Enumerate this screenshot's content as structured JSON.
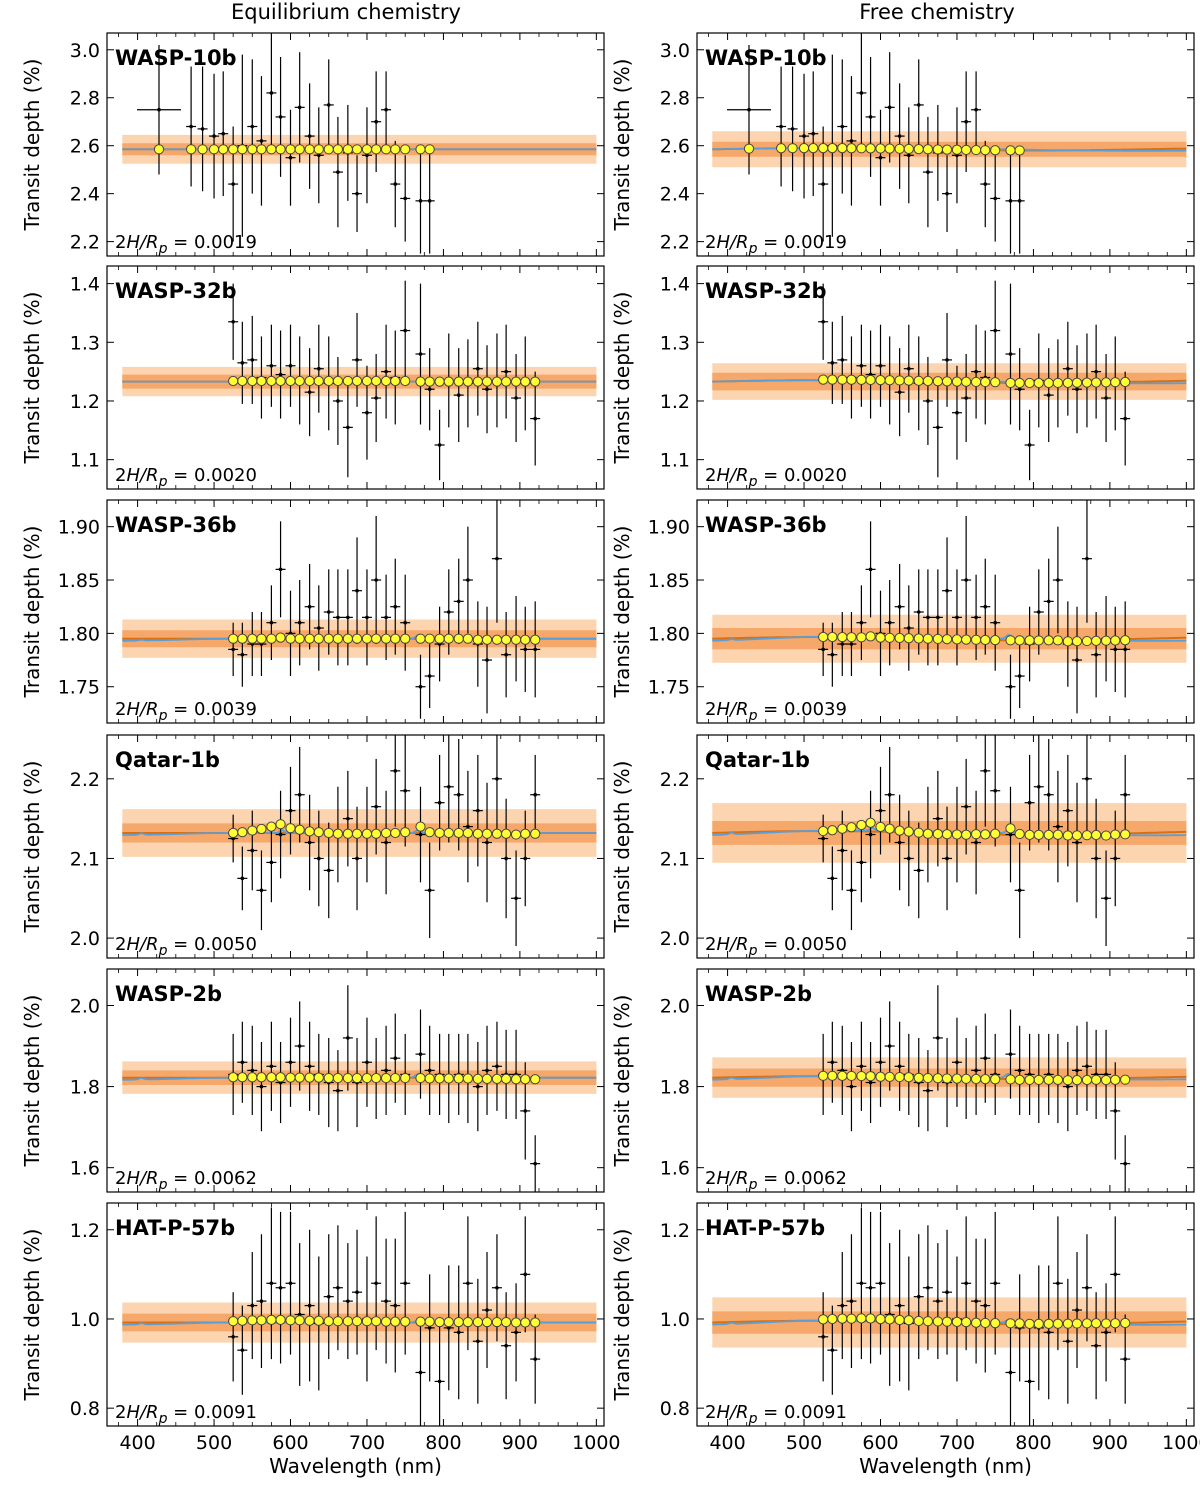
{
  "figure": {
    "column_titles": [
      "Equilibrium chemistry",
      "Free chemistry"
    ],
    "xlabel": "Wavelength (nm)",
    "ylabel": "Transit depth (%)",
    "xlim": [
      360,
      1010
    ],
    "xticks": [
      400,
      500,
      600,
      700,
      800,
      900,
      1000
    ],
    "colors": {
      "data": "#000000",
      "model_binned_fill": "#ffff33",
      "model_binned_edge": "#444444",
      "model_blue": "#5b9fd8",
      "model_orange": "#d96f10",
      "band_1sigma": "#f6a86a",
      "band_2sigma": "#fcd5b0"
    }
  },
  "chart_data": [
    {
      "type": "line",
      "planet": "WASP-10b",
      "scale_label": "2H/R_p = 0.0019",
      "ylim": [
        2.14,
        3.07
      ],
      "yticks": [
        "2.2",
        "2.4",
        "2.6",
        "2.8",
        "3.0"
      ],
      "baseline": 2.585,
      "band1": 0.025,
      "band2": 0.06,
      "x": [
        428,
        470,
        485,
        500,
        512,
        525,
        537,
        550,
        562,
        575,
        587,
        600,
        612,
        625,
        637,
        650,
        662,
        675,
        687,
        700,
        712,
        725,
        737,
        750,
        770,
        782
      ],
      "values": [
        2.75,
        2.68,
        2.67,
        2.64,
        2.65,
        2.44,
        2.6,
        2.68,
        2.62,
        2.82,
        2.72,
        2.55,
        2.76,
        2.64,
        2.56,
        2.77,
        2.49,
        2.57,
        2.4,
        2.56,
        2.7,
        2.75,
        2.44,
        2.38,
        2.37,
        2.37
      ],
      "errors": [
        0.27,
        0.25,
        0.26,
        0.26,
        0.26,
        0.24,
        0.38,
        0.28,
        0.27,
        0.25,
        0.25,
        0.2,
        0.23,
        0.22,
        0.2,
        0.19,
        0.23,
        0.2,
        0.16,
        0.2,
        0.21,
        0.16,
        0.18,
        0.18,
        0.22,
        0.22
      ],
      "model_binned": [
        2.585,
        2.585,
        2.585,
        2.585,
        2.585,
        2.585,
        2.585,
        2.585,
        2.585,
        2.585,
        2.585,
        2.585,
        2.585,
        2.585,
        2.585,
        2.585,
        2.585,
        2.585,
        2.585,
        2.585,
        2.585,
        2.585,
        2.585,
        2.585,
        2.585,
        2.585
      ]
    },
    {
      "type": "line",
      "planet": "WASP-32b",
      "scale_label": "2H/R_p = 0.0020",
      "ylim": [
        1.05,
        1.43
      ],
      "yticks": [
        "1.1",
        "1.2",
        "1.3",
        "1.4"
      ],
      "baseline": 1.233,
      "band1": 0.012,
      "band2": 0.025,
      "x": [
        525,
        537,
        550,
        562,
        575,
        587,
        600,
        612,
        625,
        637,
        650,
        662,
        675,
        687,
        700,
        712,
        725,
        737,
        750,
        770,
        782,
        795,
        807,
        820,
        832,
        845,
        857,
        870,
        882,
        895,
        907,
        920
      ],
      "values": [
        1.335,
        1.265,
        1.27,
        1.24,
        1.26,
        1.245,
        1.26,
        1.235,
        1.215,
        1.255,
        1.23,
        1.2,
        1.155,
        1.27,
        1.18,
        1.205,
        1.25,
        1.24,
        1.32,
        1.28,
        1.22,
        1.125,
        1.235,
        1.21,
        1.23,
        1.255,
        1.22,
        1.235,
        1.25,
        1.205,
        1.23,
        1.17
      ],
      "errors": [
        0.065,
        0.07,
        0.075,
        0.07,
        0.07,
        0.075,
        0.07,
        0.075,
        0.075,
        0.075,
        0.08,
        0.075,
        0.085,
        0.08,
        0.08,
        0.075,
        0.08,
        0.08,
        0.085,
        0.12,
        0.07,
        0.06,
        0.08,
        0.08,
        0.075,
        0.08,
        0.075,
        0.08,
        0.08,
        0.075,
        0.08,
        0.08
      ],
      "model_binned": [
        1.234,
        1.234,
        1.234,
        1.234,
        1.234,
        1.234,
        1.234,
        1.234,
        1.234,
        1.234,
        1.234,
        1.234,
        1.234,
        1.234,
        1.234,
        1.234,
        1.234,
        1.234,
        1.234,
        1.233,
        1.233,
        1.233,
        1.233,
        1.233,
        1.233,
        1.233,
        1.233,
        1.233,
        1.233,
        1.233,
        1.233,
        1.233
      ]
    },
    {
      "type": "line",
      "planet": "WASP-36b",
      "scale_label": "2H/R_p = 0.0039",
      "ylim": [
        1.716,
        1.925
      ],
      "yticks": [
        "1.75",
        "1.80",
        "1.85",
        "1.90"
      ],
      "baseline": 1.795,
      "band1": 0.008,
      "band2": 0.018,
      "x": [
        525,
        537,
        550,
        562,
        575,
        587,
        600,
        612,
        625,
        637,
        650,
        662,
        675,
        687,
        700,
        712,
        725,
        737,
        750,
        770,
        782,
        795,
        807,
        820,
        832,
        845,
        857,
        870,
        882,
        895,
        907,
        920
      ],
      "values": [
        1.785,
        1.78,
        1.79,
        1.79,
        1.81,
        1.86,
        1.8,
        1.81,
        1.825,
        1.805,
        1.82,
        1.815,
        1.815,
        1.84,
        1.815,
        1.85,
        1.815,
        1.825,
        1.81,
        1.75,
        1.76,
        1.79,
        1.82,
        1.83,
        1.85,
        1.79,
        1.775,
        1.87,
        1.78,
        1.795,
        1.785,
        1.785
      ],
      "errors": [
        0.025,
        0.03,
        0.03,
        0.03,
        0.035,
        0.045,
        0.04,
        0.04,
        0.04,
        0.04,
        0.04,
        0.045,
        0.045,
        0.05,
        0.045,
        0.06,
        0.04,
        0.045,
        0.045,
        0.03,
        0.03,
        0.035,
        0.04,
        0.04,
        0.05,
        0.04,
        0.05,
        0.06,
        0.04,
        0.04,
        0.04,
        0.045
      ],
      "model_binned": [
        1.795,
        1.795,
        1.795,
        1.795,
        1.795,
        1.796,
        1.795,
        1.795,
        1.795,
        1.795,
        1.795,
        1.795,
        1.795,
        1.795,
        1.795,
        1.795,
        1.795,
        1.795,
        1.795,
        1.795,
        1.795,
        1.795,
        1.795,
        1.795,
        1.795,
        1.794,
        1.794,
        1.794,
        1.794,
        1.794,
        1.794,
        1.794
      ],
      "features": [
        {
          "x": 405,
          "amp": 0.012
        },
        {
          "x": 589,
          "amp": 0.03
        },
        {
          "x": 767,
          "amp": 0.035
        },
        {
          "x": 770,
          "amp": 0.02
        }
      ]
    },
    {
      "type": "line",
      "planet": "Qatar-1b",
      "scale_label": "2H/R_p = 0.0050",
      "ylim": [
        1.975,
        2.255
      ],
      "yticks": [
        "2.0",
        "2.1",
        "2.2"
      ],
      "baseline": 2.132,
      "band1": 0.012,
      "band2": 0.03,
      "x": [
        525,
        537,
        550,
        562,
        575,
        587,
        600,
        612,
        625,
        637,
        650,
        662,
        675,
        687,
        700,
        712,
        725,
        737,
        750,
        770,
        782,
        795,
        807,
        820,
        832,
        845,
        857,
        870,
        882,
        895,
        907,
        920
      ],
      "values": [
        2.125,
        2.075,
        2.11,
        2.06,
        2.095,
        2.13,
        2.16,
        2.18,
        2.12,
        2.1,
        2.085,
        2.13,
        2.15,
        2.1,
        2.13,
        2.165,
        2.12,
        2.21,
        2.185,
        2.13,
        2.06,
        2.17,
        2.19,
        2.18,
        2.14,
        2.16,
        2.12,
        2.2,
        2.1,
        2.05,
        2.1,
        2.18
      ],
      "errors": [
        0.03,
        0.04,
        0.05,
        0.05,
        0.05,
        0.055,
        0.055,
        0.06,
        0.06,
        0.06,
        0.06,
        0.06,
        0.06,
        0.065,
        0.06,
        0.06,
        0.065,
        0.07,
        0.07,
        0.06,
        0.06,
        0.06,
        0.07,
        0.07,
        0.07,
        0.07,
        0.075,
        0.075,
        0.075,
        0.06,
        0.06,
        0.05
      ],
      "model_binned": [
        2.132,
        2.133,
        2.135,
        2.137,
        2.14,
        2.143,
        2.138,
        2.136,
        2.134,
        2.133,
        2.132,
        2.131,
        2.131,
        2.131,
        2.131,
        2.131,
        2.132,
        2.132,
        2.133,
        2.14,
        2.133,
        2.132,
        2.132,
        2.132,
        2.132,
        2.131,
        2.131,
        2.131,
        2.131,
        2.13,
        2.131,
        2.131
      ],
      "features": [
        {
          "x": 405,
          "amp": 0.02
        },
        {
          "x": 589,
          "amp": 0.035
        },
        {
          "x": 767,
          "amp": 0.035
        }
      ]
    },
    {
      "type": "line",
      "planet": "WASP-2b",
      "scale_label": "2H/R_p = 0.0062",
      "ylim": [
        1.54,
        2.09
      ],
      "yticks": [
        "1.6",
        "1.8",
        "2.0"
      ],
      "baseline": 1.822,
      "band1": 0.018,
      "band2": 0.04,
      "x": [
        525,
        537,
        550,
        562,
        575,
        587,
        600,
        612,
        625,
        637,
        650,
        662,
        675,
        687,
        700,
        712,
        725,
        737,
        750,
        770,
        782,
        795,
        807,
        820,
        832,
        845,
        857,
        870,
        882,
        895,
        907,
        920
      ],
      "values": [
        1.83,
        1.86,
        1.84,
        1.8,
        1.85,
        1.81,
        1.86,
        1.9,
        1.85,
        1.83,
        1.81,
        1.79,
        1.92,
        1.81,
        1.86,
        1.82,
        1.84,
        1.87,
        1.83,
        1.88,
        1.84,
        1.83,
        1.82,
        1.83,
        1.82,
        1.8,
        1.84,
        1.85,
        1.83,
        1.83,
        1.74,
        1.61
      ],
      "errors": [
        0.1,
        0.1,
        0.11,
        0.11,
        0.11,
        0.1,
        0.11,
        0.11,
        0.11,
        0.1,
        0.11,
        0.1,
        0.13,
        0.11,
        0.11,
        0.1,
        0.11,
        0.11,
        0.1,
        0.11,
        0.11,
        0.1,
        0.11,
        0.1,
        0.11,
        0.11,
        0.11,
        0.11,
        0.11,
        0.11,
        0.12,
        0.07
      ],
      "model_binned": [
        1.823,
        1.823,
        1.823,
        1.823,
        1.823,
        1.823,
        1.822,
        1.822,
        1.822,
        1.822,
        1.821,
        1.821,
        1.821,
        1.821,
        1.821,
        1.821,
        1.821,
        1.821,
        1.821,
        1.821,
        1.82,
        1.82,
        1.82,
        1.82,
        1.82,
        1.819,
        1.819,
        1.819,
        1.819,
        1.818,
        1.818,
        1.818
      ],
      "features": [
        {
          "x": 405,
          "amp": 0.02
        },
        {
          "x": 589,
          "amp": 0.05
        },
        {
          "x": 767,
          "amp": 0.05
        }
      ]
    },
    {
      "type": "line",
      "planet": "HAT-P-57b",
      "scale_label": "2H/R_p = 0.0091",
      "ylim": [
        0.76,
        1.26
      ],
      "yticks": [
        "0.8",
        "1.0",
        "1.2"
      ],
      "baseline": 0.992,
      "band1": 0.02,
      "band2": 0.045,
      "x": [
        525,
        537,
        550,
        562,
        575,
        587,
        600,
        612,
        625,
        637,
        650,
        662,
        675,
        687,
        700,
        712,
        725,
        737,
        750,
        770,
        782,
        795,
        807,
        820,
        832,
        845,
        857,
        870,
        882,
        895,
        907,
        920
      ],
      "values": [
        0.96,
        0.93,
        1.03,
        1.04,
        1.08,
        1.07,
        1.08,
        1.01,
        1.03,
        0.99,
        1.05,
        1.07,
        1.04,
        1.06,
        1.0,
        1.08,
        1.04,
        1.03,
        1.08,
        0.88,
        0.98,
        0.86,
        0.98,
        0.97,
        1.08,
        0.95,
        1.02,
        1.07,
        0.94,
        0.97,
        1.1,
        0.91
      ],
      "errors": [
        0.1,
        0.1,
        0.12,
        0.15,
        0.17,
        0.17,
        0.16,
        0.16,
        0.17,
        0.15,
        0.14,
        0.14,
        0.13,
        0.14,
        0.14,
        0.15,
        0.14,
        0.15,
        0.16,
        0.12,
        0.12,
        0.14,
        0.14,
        0.15,
        0.15,
        0.14,
        0.13,
        0.12,
        0.12,
        0.11,
        0.13,
        0.1
      ],
      "model_binned": [
        0.995,
        0.996,
        0.997,
        0.997,
        0.998,
        0.998,
        0.997,
        0.997,
        0.996,
        0.996,
        0.995,
        0.995,
        0.995,
        0.995,
        0.995,
        0.995,
        0.994,
        0.994,
        0.994,
        0.994,
        0.994,
        0.993,
        0.993,
        0.993,
        0.993,
        0.993,
        0.993,
        0.993,
        0.993,
        0.992,
        0.992,
        0.992
      ],
      "features": [
        {
          "x": 405,
          "amp": 0.015
        },
        {
          "x": 589,
          "amp": 0.03
        },
        {
          "x": 767,
          "amp": 0.03
        }
      ]
    }
  ]
}
